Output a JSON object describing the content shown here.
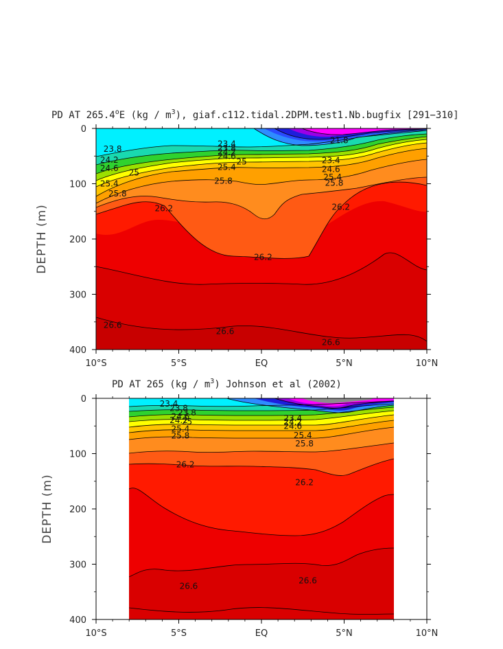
{
  "chart_data": [
    {
      "type": "heatmap",
      "title": "PD AT 265.4°E (kg / m³), giaf.c112.tidal.2DPM.test1.Nb.bugfix [291−310]",
      "ylabel": "DEPTH (m)",
      "xlabel": "",
      "x_ticks": [
        "10°S",
        "5°S",
        "EQ",
        "5°N",
        "10°N"
      ],
      "y_ticks": [
        "0",
        "100",
        "200",
        "300",
        "400"
      ],
      "xlim": [
        -10,
        10
      ],
      "ylim": [
        0,
        400
      ],
      "data_xlim": [
        -10,
        10
      ],
      "contour_labels": [
        {
          "text": "21.8",
          "x": 4.7,
          "y": 22
        },
        {
          "text": "23.4",
          "x": -2.1,
          "y": 28
        },
        {
          "text": "23.8",
          "x": -9.0,
          "y": 37
        },
        {
          "text": "23.8",
          "x": -2.1,
          "y": 36
        },
        {
          "text": "24.2",
          "x": -2.1,
          "y": 43
        },
        {
          "text": "24.6",
          "x": -2.1,
          "y": 50
        },
        {
          "text": "25",
          "x": -1.2,
          "y": 60
        },
        {
          "text": "24.2",
          "x": -9.2,
          "y": 57
        },
        {
          "text": "24.6",
          "x": -9.2,
          "y": 72
        },
        {
          "text": "25",
          "x": -7.7,
          "y": 80
        },
        {
          "text": "25.4",
          "x": -2.1,
          "y": 70
        },
        {
          "text": "25.4",
          "x": -9.2,
          "y": 100
        },
        {
          "text": "25.8",
          "x": -2.3,
          "y": 95
        },
        {
          "text": "25.8",
          "x": -8.7,
          "y": 118
        },
        {
          "text": "23.4",
          "x": 4.2,
          "y": 58
        },
        {
          "text": "24.6",
          "x": 4.2,
          "y": 74
        },
        {
          "text": "25.4",
          "x": 4.3,
          "y": 88
        },
        {
          "text": "25.8",
          "x": 4.4,
          "y": 99
        },
        {
          "text": "26.2",
          "x": -5.9,
          "y": 145
        },
        {
          "text": "26.2",
          "x": 4.8,
          "y": 142
        },
        {
          "text": "26.2",
          "x": 0.1,
          "y": 233
        },
        {
          "text": "26.6",
          "x": -9.0,
          "y": 356
        },
        {
          "text": "26.6",
          "x": -2.2,
          "y": 367
        },
        {
          "text": "26.6",
          "x": 4.2,
          "y": 387
        }
      ]
    },
    {
      "type": "heatmap",
      "title": "PD AT 265 (kg / m³) Johnson et al (2002)",
      "ylabel": "DEPTH (m)",
      "xlabel": "",
      "x_ticks": [
        "10°S",
        "5°S",
        "EQ",
        "5°N",
        "10°N"
      ],
      "y_ticks": [
        "0",
        "100",
        "200",
        "300",
        "400"
      ],
      "xlim": [
        -10,
        10
      ],
      "ylim": [
        0,
        400
      ],
      "data_xlim": [
        -8,
        8
      ],
      "contour_labels": [
        {
          "text": "23.4",
          "x": -5.6,
          "y": 10
        },
        {
          "text": "23.8",
          "x": -5.0,
          "y": 18
        },
        {
          "text": "23.8",
          "x": -4.5,
          "y": 26
        },
        {
          "text": "24.6",
          "x": -4.9,
          "y": 33
        },
        {
          "text": "24.2",
          "x": -5.0,
          "y": 40
        },
        {
          "text": "25",
          "x": -4.5,
          "y": 42
        },
        {
          "text": "25.4",
          "x": -4.9,
          "y": 55
        },
        {
          "text": "25.8",
          "x": -4.9,
          "y": 68
        },
        {
          "text": "23.4",
          "x": 1.9,
          "y": 36
        },
        {
          "text": "24.2",
          "x": 1.9,
          "y": 43
        },
        {
          "text": "24.6",
          "x": 1.9,
          "y": 50
        },
        {
          "text": "25.4",
          "x": 2.5,
          "y": 67
        },
        {
          "text": "25.8",
          "x": 2.6,
          "y": 82
        },
        {
          "text": "26.2",
          "x": -4.6,
          "y": 120
        },
        {
          "text": "26.2",
          "x": 2.6,
          "y": 152
        },
        {
          "text": "26.6",
          "x": -4.4,
          "y": 340
        },
        {
          "text": "26.6",
          "x": 2.8,
          "y": 330
        }
      ]
    }
  ],
  "panels": [
    {
      "title_main": "PD AT 265.4",
      "title_unit": "E (kg / m",
      "title_rest": "), giaf.c112.tidal.2DPM.test1.Nb.bugfix [291−310]"
    },
    {
      "title_main": "PD AT 265 (kg / m",
      "title_rest": ") Johnson et al (2002)"
    }
  ],
  "colors": {
    "magenta": "#ff00ff",
    "purple": "#9b00e6",
    "blue1": "#1e1edc",
    "blue2": "#2a4bff",
    "blue3": "#2e8cff",
    "cyan": "#00f0ff",
    "teal": "#19d9b0",
    "green": "#2fd22f",
    "yellowgreen": "#9be000",
    "yellow": "#ffff00",
    "gold": "#ffc400",
    "amber": "#ffa000",
    "orange": "#ff8c1e",
    "orangered": "#ff5a14",
    "red": "#ff1a00",
    "red2": "#ee0000",
    "red3": "#d90000",
    "darkred": "#c80000",
    "gray": "#8c8c8c"
  }
}
